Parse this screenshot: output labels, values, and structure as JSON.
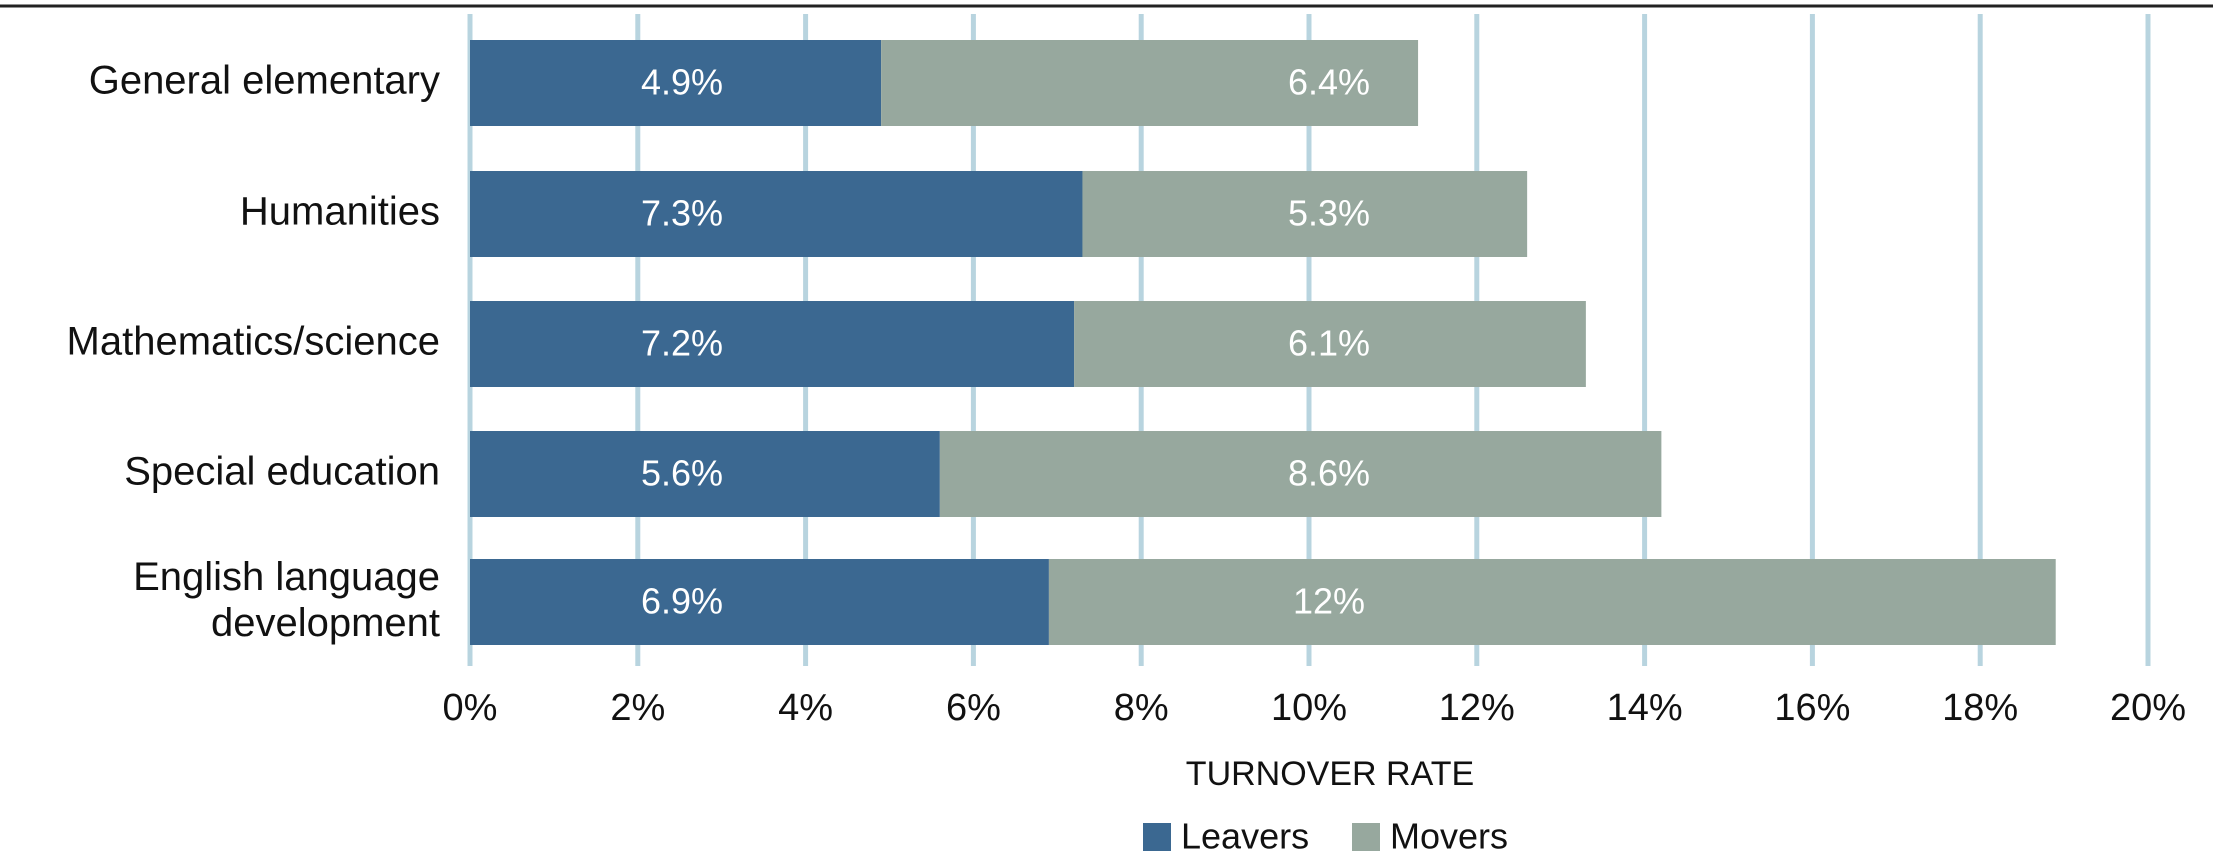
{
  "chart_data": {
    "type": "stacked-barh",
    "categories": [
      "General elementary",
      "Humanities",
      "Mathematics/science",
      "Special education",
      "English language development"
    ],
    "series": [
      {
        "name": "Leavers",
        "color": "#3b6891",
        "values": [
          4.9,
          7.3,
          7.2,
          5.6,
          6.9
        ],
        "value_labels": [
          "4.9%",
          "7.3%",
          "7.2%",
          "5.6%",
          "6.9%"
        ]
      },
      {
        "name": "Movers",
        "color": "#97a89e",
        "values": [
          6.4,
          5.3,
          6.1,
          8.6,
          12
        ],
        "value_labels": [
          "6.4%",
          "5.3%",
          "6.1%",
          "8.6%",
          "12%"
        ]
      }
    ],
    "xlabel": "TURNOVER RATE",
    "xlim": [
      0,
      20
    ],
    "xticks": [
      {
        "value": 0,
        "label": "0%"
      },
      {
        "value": 2,
        "label": "2%"
      },
      {
        "value": 4,
        "label": "4%"
      },
      {
        "value": 6,
        "label": "6%"
      },
      {
        "value": 8,
        "label": "8%"
      },
      {
        "value": 10,
        "label": "10%"
      },
      {
        "value": 12,
        "label": "12%"
      },
      {
        "value": 14,
        "label": "14%"
      },
      {
        "value": 16,
        "label": "16%"
      },
      {
        "value": 18,
        "label": "18%"
      },
      {
        "value": 20,
        "label": "20%"
      }
    ],
    "grid": true,
    "grid_color": "#b8d4df",
    "legend": "bottom"
  }
}
